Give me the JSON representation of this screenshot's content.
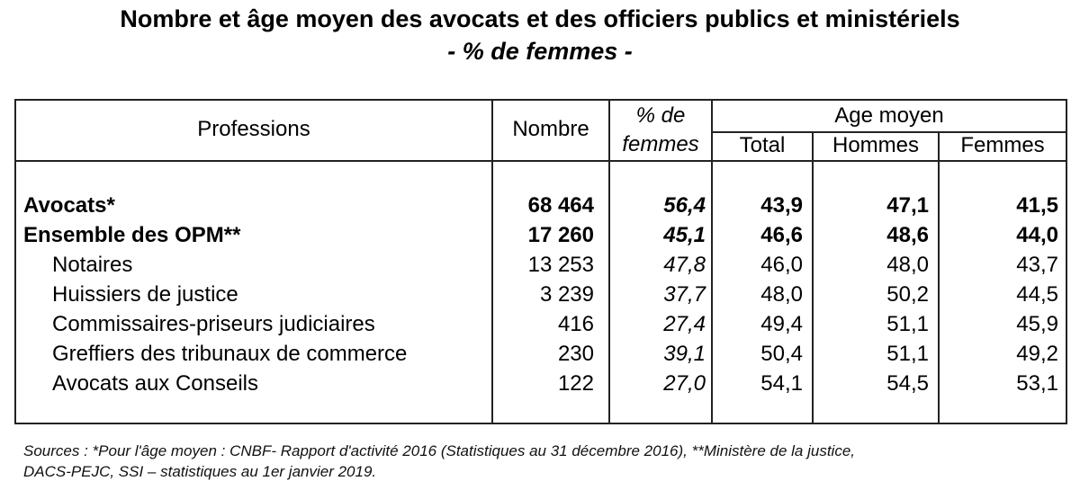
{
  "title": "Nombre et âge moyen des avocats et des officiers publics et ministériels",
  "subtitle": "- % de femmes -",
  "table": {
    "headers": {
      "professions": "Professions",
      "nombre": "Nombre",
      "pct_femmes_line1": "% de",
      "pct_femmes_line2": "femmes",
      "age_moyen": "Age moyen",
      "total": "Total",
      "hommes": "Hommes",
      "femmes": "Femmes"
    },
    "rows": [
      {
        "profession": "Avocats*",
        "nombre": "68 464",
        "pct_femmes": "56,4",
        "total": "43,9",
        "hommes": "47,1",
        "femmes": "41,5"
      },
      {
        "profession": "Ensemble des OPM**",
        "nombre": "17 260",
        "pct_femmes": "45,1",
        "total": "46,6",
        "hommes": "48,6",
        "femmes": "44,0"
      },
      {
        "profession": "Notaires",
        "nombre": "13 253",
        "pct_femmes": "47,8",
        "total": "46,0",
        "hommes": "48,0",
        "femmes": "43,7"
      },
      {
        "profession": "Huissiers de justice",
        "nombre": "3 239",
        "pct_femmes": "37,7",
        "total": "48,0",
        "hommes": "50,2",
        "femmes": "44,5"
      },
      {
        "profession": "Commissaires-priseurs judiciaires",
        "nombre": "416",
        "pct_femmes": "27,4",
        "total": "49,4",
        "hommes": "51,1",
        "femmes": "45,9"
      },
      {
        "profession": "Greffiers des tribunaux de commerce",
        "nombre": "230",
        "pct_femmes": "39,1",
        "total": "50,4",
        "hommes": "51,1",
        "femmes": "49,2"
      },
      {
        "profession": "Avocats aux Conseils",
        "nombre": "122",
        "pct_femmes": "27,0",
        "total": "54,1",
        "hommes": "54,5",
        "femmes": "53,1"
      }
    ]
  },
  "sources_line1": "Sources : *Pour l'âge moyen : CNBF- Rapport d'activité 2016 (Statistiques au 31 décembre 2016), **Ministère de la justice,",
  "sources_line2": "DACS-PEJC, SSI – statistiques au 1er janvier 2019."
}
